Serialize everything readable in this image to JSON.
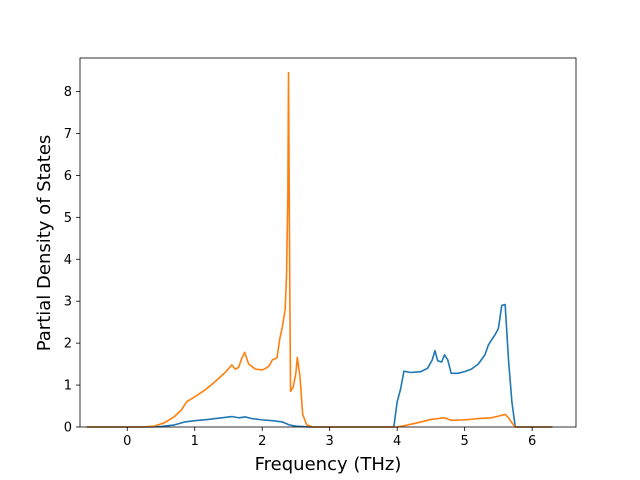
{
  "chart_data": {
    "type": "line",
    "title": "",
    "xlabel": "Frequency (THz)",
    "ylabel": "Partial Density of States",
    "xlim": [
      -0.7,
      6.65
    ],
    "ylim": [
      0,
      8.8
    ],
    "xticks": [
      0,
      1,
      2,
      3,
      4,
      5,
      6
    ],
    "yticks": [
      0,
      1,
      2,
      3,
      4,
      5,
      6,
      7,
      8
    ],
    "grid": false,
    "legend": "none",
    "series": [
      {
        "color": "#1f77b4",
        "points": [
          [
            -0.6,
            0
          ],
          [
            0.3,
            0
          ],
          [
            0.5,
            0.01
          ],
          [
            0.7,
            0.05
          ],
          [
            0.85,
            0.12
          ],
          [
            1.0,
            0.15
          ],
          [
            1.2,
            0.18
          ],
          [
            1.4,
            0.22
          ],
          [
            1.55,
            0.25
          ],
          [
            1.65,
            0.22
          ],
          [
            1.75,
            0.24
          ],
          [
            1.85,
            0.2
          ],
          [
            2.0,
            0.17
          ],
          [
            2.15,
            0.15
          ],
          [
            2.3,
            0.12
          ],
          [
            2.4,
            0.05
          ],
          [
            2.5,
            0.02
          ],
          [
            2.6,
            0.01
          ],
          [
            2.7,
            0
          ],
          [
            3.95,
            0
          ],
          [
            4.0,
            0.6
          ],
          [
            4.05,
            0.9
          ],
          [
            4.1,
            1.33
          ],
          [
            4.2,
            1.3
          ],
          [
            4.35,
            1.32
          ],
          [
            4.45,
            1.4
          ],
          [
            4.52,
            1.6
          ],
          [
            4.56,
            1.82
          ],
          [
            4.6,
            1.58
          ],
          [
            4.66,
            1.55
          ],
          [
            4.7,
            1.72
          ],
          [
            4.75,
            1.6
          ],
          [
            4.8,
            1.28
          ],
          [
            4.9,
            1.28
          ],
          [
            5.0,
            1.32
          ],
          [
            5.1,
            1.38
          ],
          [
            5.2,
            1.5
          ],
          [
            5.3,
            1.72
          ],
          [
            5.35,
            1.95
          ],
          [
            5.4,
            2.08
          ],
          [
            5.45,
            2.2
          ],
          [
            5.5,
            2.35
          ],
          [
            5.55,
            2.9
          ],
          [
            5.6,
            2.92
          ],
          [
            5.65,
            1.6
          ],
          [
            5.7,
            0.6
          ],
          [
            5.75,
            0
          ],
          [
            6.3,
            0
          ]
        ]
      },
      {
        "color": "#ff7f0e",
        "points": [
          [
            -0.6,
            0
          ],
          [
            0.2,
            0
          ],
          [
            0.4,
            0.02
          ],
          [
            0.55,
            0.1
          ],
          [
            0.7,
            0.25
          ],
          [
            0.8,
            0.4
          ],
          [
            0.88,
            0.6
          ],
          [
            1.0,
            0.72
          ],
          [
            1.15,
            0.88
          ],
          [
            1.3,
            1.08
          ],
          [
            1.45,
            1.3
          ],
          [
            1.55,
            1.48
          ],
          [
            1.6,
            1.38
          ],
          [
            1.65,
            1.42
          ],
          [
            1.7,
            1.65
          ],
          [
            1.74,
            1.78
          ],
          [
            1.8,
            1.5
          ],
          [
            1.9,
            1.38
          ],
          [
            2.0,
            1.36
          ],
          [
            2.05,
            1.4
          ],
          [
            2.1,
            1.45
          ],
          [
            2.15,
            1.6
          ],
          [
            2.22,
            1.65
          ],
          [
            2.26,
            2.1
          ],
          [
            2.3,
            2.4
          ],
          [
            2.34,
            2.8
          ],
          [
            2.36,
            3.6
          ],
          [
            2.38,
            5.5
          ],
          [
            2.39,
            8.45
          ],
          [
            2.41,
            3.0
          ],
          [
            2.42,
            0.85
          ],
          [
            2.46,
            0.95
          ],
          [
            2.5,
            1.3
          ],
          [
            2.52,
            1.66
          ],
          [
            2.56,
            1.2
          ],
          [
            2.6,
            0.3
          ],
          [
            2.66,
            0.05
          ],
          [
            2.75,
            0
          ],
          [
            4.0,
            0
          ],
          [
            4.1,
            0.03
          ],
          [
            4.3,
            0.1
          ],
          [
            4.5,
            0.18
          ],
          [
            4.6,
            0.2
          ],
          [
            4.7,
            0.22
          ],
          [
            4.8,
            0.16
          ],
          [
            5.0,
            0.17
          ],
          [
            5.2,
            0.2
          ],
          [
            5.4,
            0.22
          ],
          [
            5.5,
            0.26
          ],
          [
            5.6,
            0.3
          ],
          [
            5.65,
            0.22
          ],
          [
            5.7,
            0.1
          ],
          [
            5.75,
            0
          ],
          [
            6.3,
            0
          ]
        ]
      }
    ]
  }
}
